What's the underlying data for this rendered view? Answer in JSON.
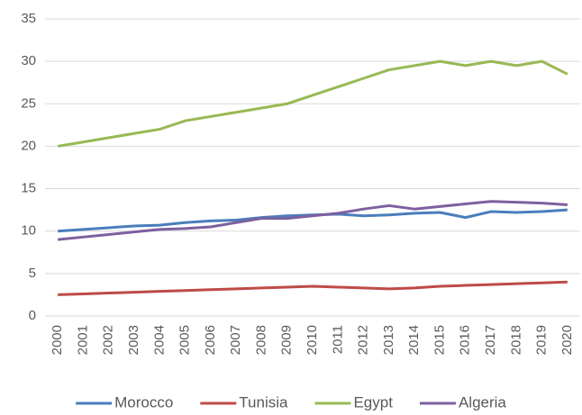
{
  "chart_data": {
    "type": "line",
    "categories": [
      "2000",
      "2001",
      "2002",
      "2003",
      "2004",
      "2005",
      "2006",
      "2007",
      "2008",
      "2009",
      "2010",
      "2011",
      "2012",
      "2013",
      "2014",
      "2015",
      "2016",
      "2017",
      "2018",
      "2019",
      "2020"
    ],
    "series": [
      {
        "name": "Morocco",
        "color": "#4a7ebb",
        "values": [
          10.0,
          10.2,
          10.4,
          10.6,
          10.7,
          11.0,
          11.2,
          11.3,
          11.6,
          11.8,
          11.9,
          12.0,
          11.8,
          11.9,
          12.1,
          12.2,
          11.6,
          12.3,
          12.2,
          12.3,
          12.5
        ]
      },
      {
        "name": "Tunisia",
        "color": "#be4b48",
        "values": [
          2.5,
          2.6,
          2.7,
          2.8,
          2.9,
          3.0,
          3.1,
          3.2,
          3.3,
          3.4,
          3.5,
          3.4,
          3.3,
          3.2,
          3.3,
          3.5,
          3.6,
          3.7,
          3.8,
          3.9,
          4.0
        ]
      },
      {
        "name": "Egypt",
        "color": "#98b954",
        "values": [
          20,
          20.5,
          21,
          21.5,
          22,
          23,
          23.5,
          24,
          24.5,
          25,
          26,
          27,
          28,
          29,
          29.5,
          30,
          29.5,
          30,
          29.5,
          30,
          28.5
        ]
      },
      {
        "name": "Algeria",
        "color": "#7d60a0",
        "values": [
          9.0,
          9.3,
          9.6,
          9.9,
          10.2,
          10.3,
          10.5,
          11.0,
          11.5,
          11.5,
          11.8,
          12.1,
          12.6,
          13.0,
          12.6,
          12.9,
          13.2,
          13.5,
          13.4,
          13.3,
          13.1
        ]
      }
    ],
    "ylim": [
      0,
      35
    ],
    "yticks": [
      0,
      5,
      10,
      15,
      20,
      25,
      30,
      35
    ],
    "grid": true,
    "legend": "bottom"
  }
}
